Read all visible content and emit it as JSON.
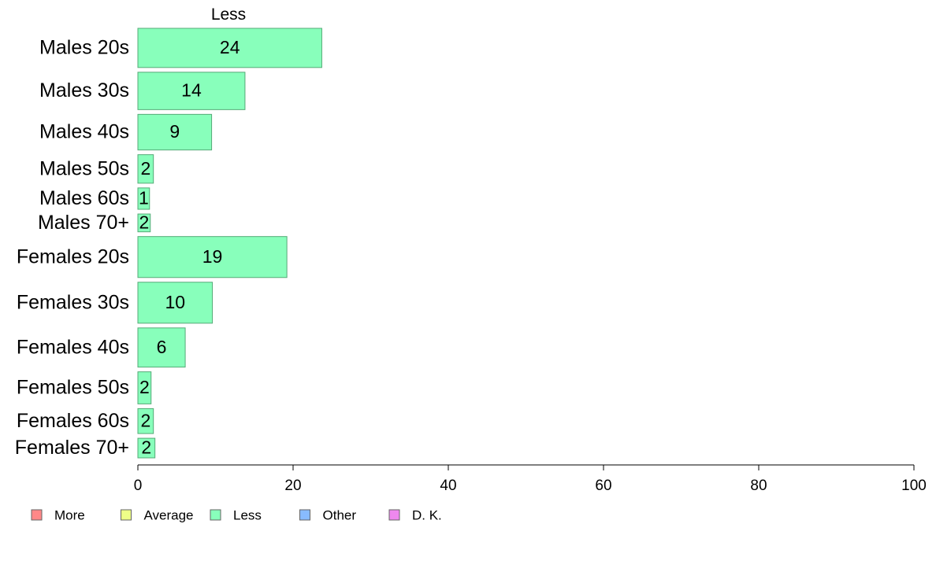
{
  "chart_data": {
    "type": "bar",
    "orientation": "horizontal",
    "title": "Less",
    "categories": [
      "Males 20s",
      "Males 30s",
      "Males 40s",
      "Males 50s",
      "Males 60s",
      "Males 70+",
      "Females 20s",
      "Females 30s",
      "Females 40s",
      "Females 50s",
      "Females 60s",
      "Females 70+"
    ],
    "series": [
      {
        "name": "Less",
        "color": "#88ffbb",
        "values": [
          23.7,
          13.8,
          9.5,
          2.0,
          1.5,
          1.6,
          19.2,
          9.6,
          6.1,
          1.7,
          2.0,
          2.2
        ],
        "labels": [
          "24",
          "14",
          "9",
          "2",
          "1",
          "2",
          "19",
          "10",
          "6",
          "2",
          "2",
          "2"
        ]
      }
    ],
    "bar_widths": [
      22,
      21,
      20,
      16,
      12,
      10,
      23,
      23,
      22,
      18,
      14,
      11
    ],
    "xlim": [
      0,
      100
    ],
    "xticks": [
      "0",
      "20",
      "40",
      "60",
      "80",
      "100"
    ],
    "legend": {
      "placement": "bottom-left",
      "items": [
        {
          "label": "More",
          "color": "#ff8888"
        },
        {
          "label": "Average",
          "color": "#eeff88"
        },
        {
          "label": "Less",
          "color": "#88ffbb"
        },
        {
          "label": "Other",
          "color": "#88bbff"
        },
        {
          "label": "D. K.",
          "color": "#ee88ee"
        }
      ]
    }
  }
}
